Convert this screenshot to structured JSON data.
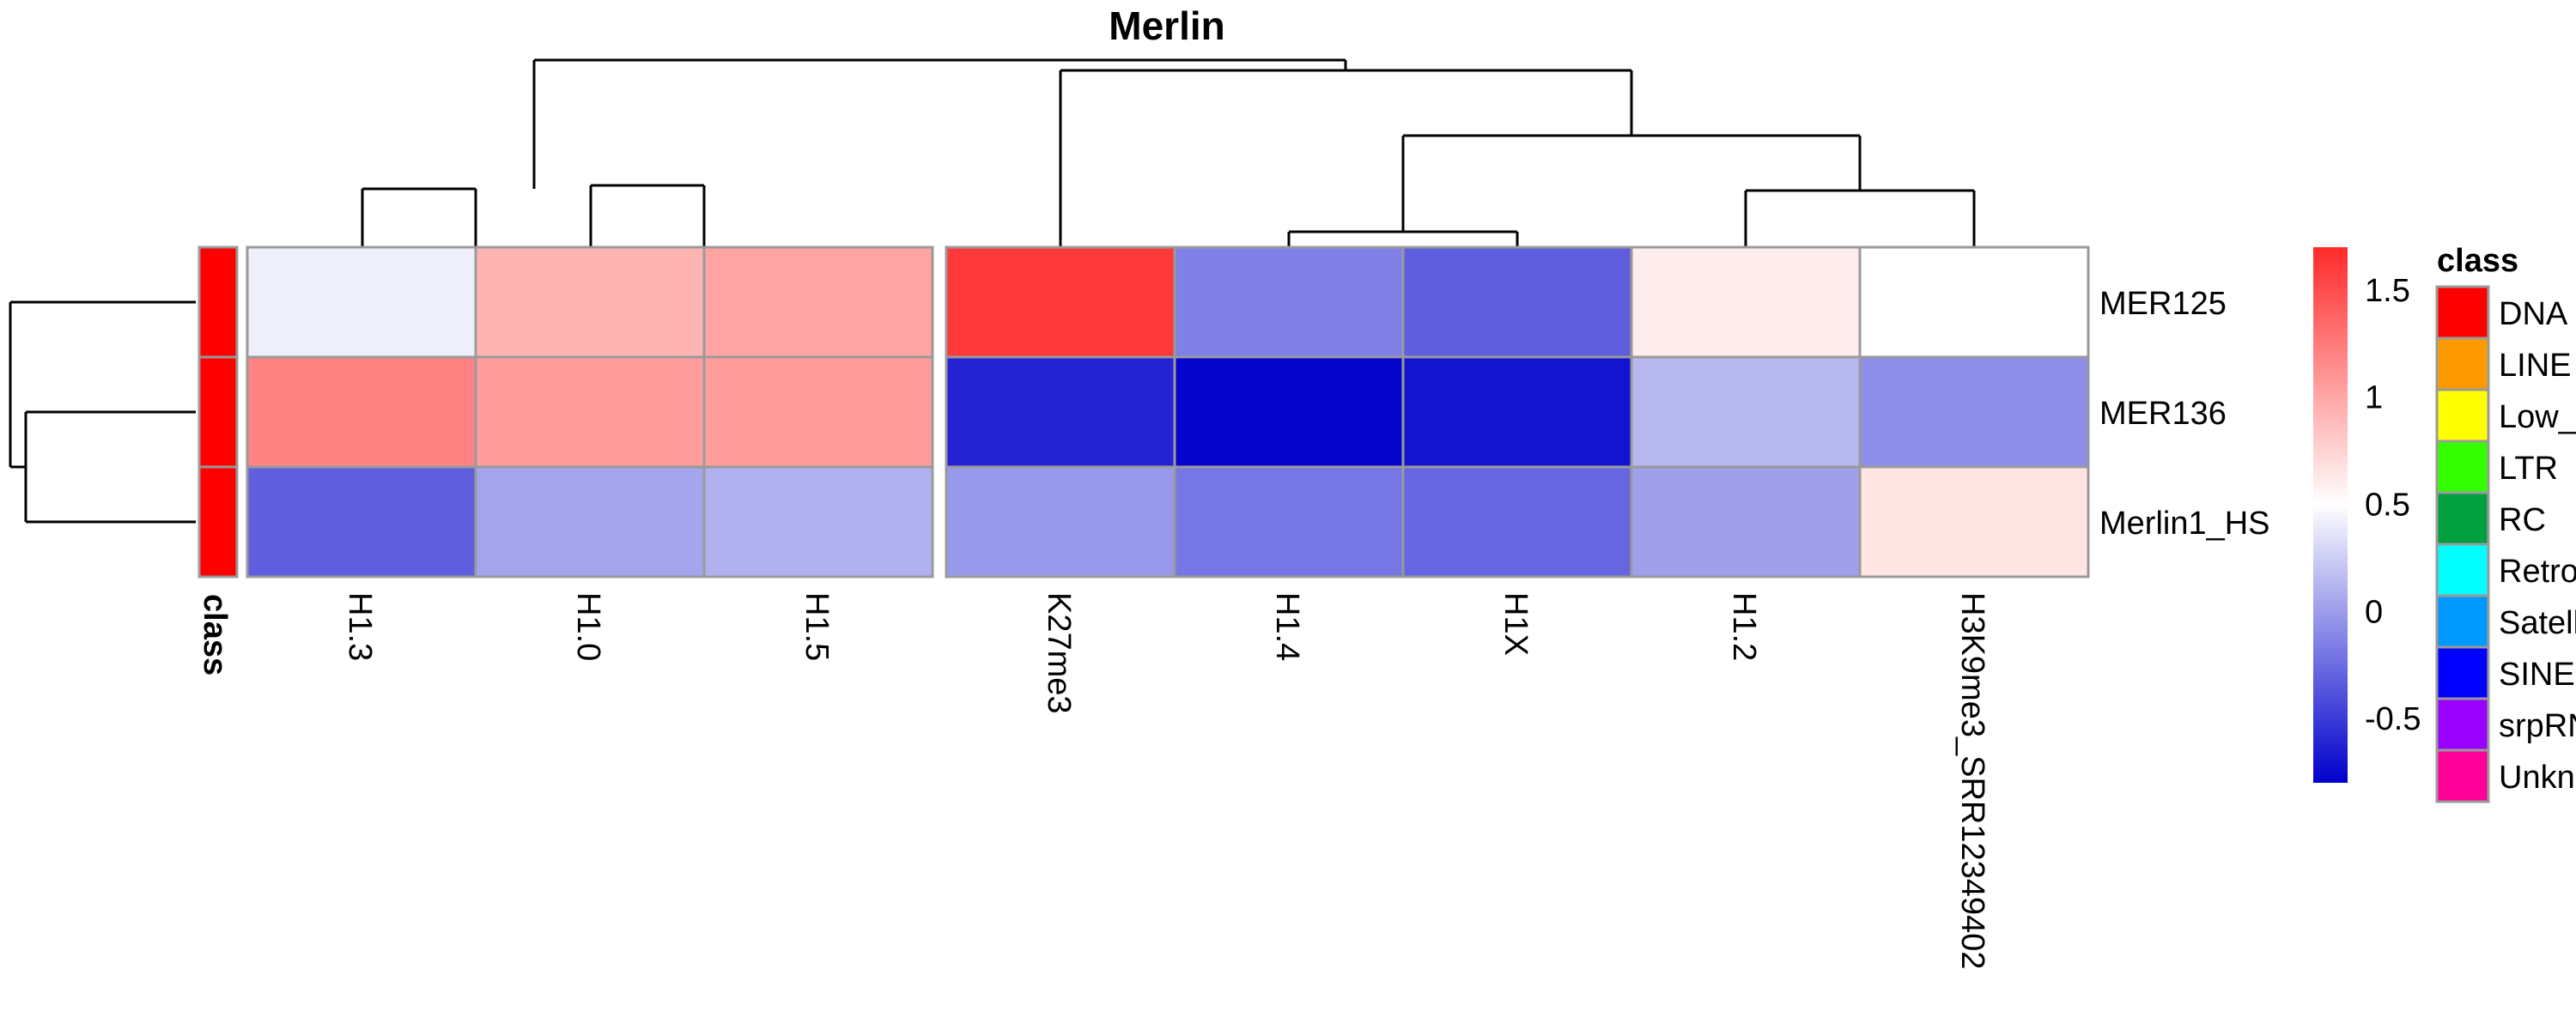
{
  "chart_data": {
    "type": "heatmap",
    "title": "Merlin",
    "columns": [
      "H1.3",
      "H1.0",
      "H1.5",
      "K27me3",
      "H1.4",
      "H1X",
      "H1.2",
      "H3K9me3_SRR12349402"
    ],
    "rows": [
      "MER125",
      "MER136",
      "Merlin1_HS"
    ],
    "values": [
      [
        0.42,
        0.92,
        1.02,
        1.62,
        -0.15,
        -0.32,
        0.6,
        0.5
      ],
      [
        1.2,
        1.05,
        1.05,
        -0.62,
        -0.78,
        -0.7,
        0.14,
        -0.07
      ],
      [
        -0.32,
        0.04,
        0.1,
        -0.02,
        -0.2,
        -0.28,
        0.01,
        0.65
      ]
    ],
    "column_split_after_index": 2,
    "row_annotation": {
      "title": "class",
      "values": [
        "DNA",
        "DNA",
        "DNA"
      ]
    },
    "color_scale": {
      "min": -0.8,
      "mid": 0.5,
      "max": 1.7,
      "low_color": "#0000CC",
      "mid_color": "#FFFFFF",
      "high_color": "#FF2A2A",
      "ticks": [
        "1.5",
        "1",
        "0.5",
        "0",
        "-0.5"
      ],
      "tick_values": [
        1.5,
        1,
        0.5,
        0,
        -0.5
      ]
    },
    "legend": {
      "title": "class",
      "entries": [
        {
          "label": "DNA",
          "color": "#FF0000"
        },
        {
          "label": "LINE",
          "color": "#FF9900"
        },
        {
          "label": "Low_complexity",
          "color": "#FFFF00"
        },
        {
          "label": "LTR",
          "color": "#33FF00"
        },
        {
          "label": "RC",
          "color": "#00A040"
        },
        {
          "label": "Retroposon",
          "color": "#00FFFF"
        },
        {
          "label": "Satellite",
          "color": "#0099FF"
        },
        {
          "label": "SINE",
          "color": "#0000FF"
        },
        {
          "label": "srpRNA",
          "color": "#9900FF"
        },
        {
          "label": "Unknown",
          "color": "#FF0099"
        }
      ]
    }
  }
}
